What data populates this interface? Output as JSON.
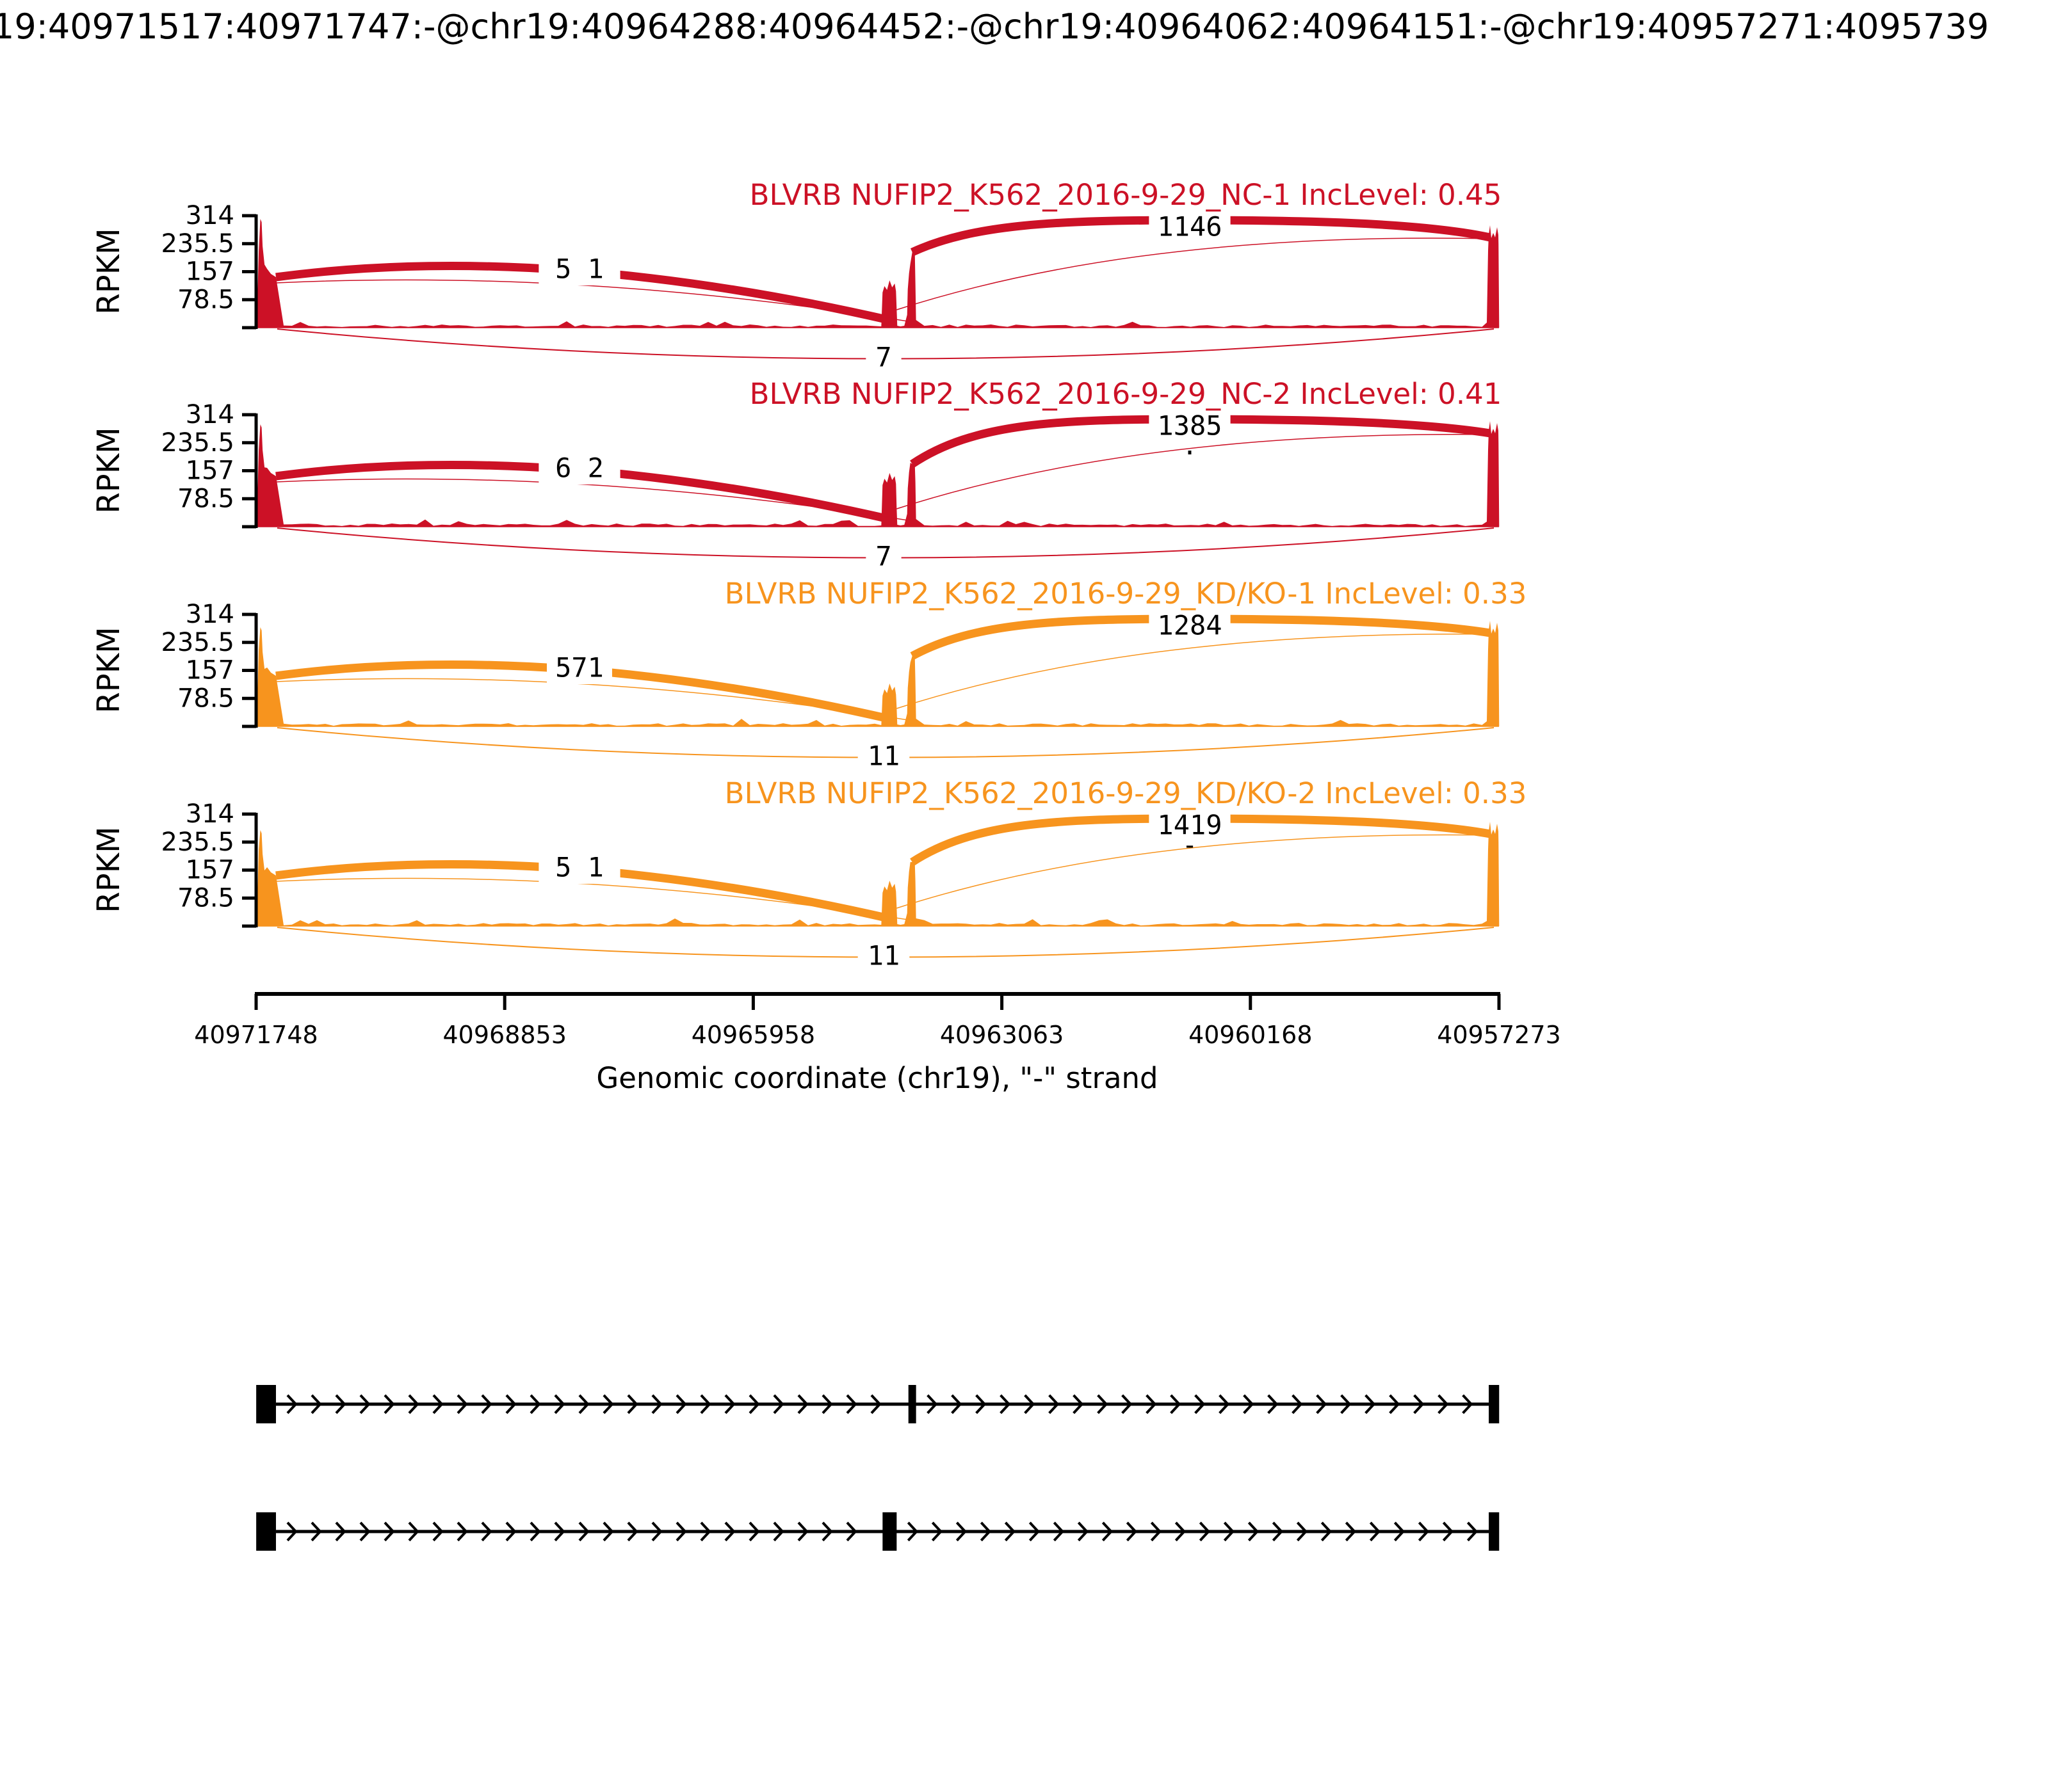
{
  "title": "19:40971517:40971747:-@chr19:40964288:40964452:-@chr19:40964062:40964151:-@chr19:40957271:4095739",
  "chart_data": {
    "type": "area",
    "subtype": "sashimi-plot",
    "gene": "BLVRB",
    "ylabel": "RPKM",
    "ylim": [
      0,
      314
    ],
    "y_ticks": [
      "314",
      "235.5",
      "157",
      "78.5"
    ],
    "x_axis": {
      "label": "Genomic coordinate (chr19), \"-\" strand",
      "ticks": [
        "40971748",
        "40968853",
        "40965958",
        "40963063",
        "40960168",
        "40957273"
      ],
      "range_left_coord": 40971748,
      "range_right_coord": 40957273,
      "strand": "-"
    },
    "exons": {
      "upstream": [
        40971517,
        40971747
      ],
      "mxe_exon_1": [
        40964288,
        40964452
      ],
      "mxe_exon_2": [
        40964062,
        40964151
      ],
      "downstream": [
        40957271,
        40957392
      ]
    },
    "tracks": [
      {
        "title": "BLVRB NUFIP2_K562_2016-9-29_NC-1 IncLevel: 0.45",
        "inc_level": "0.45",
        "color": "#CC1126",
        "inclusion_junction_counts": [
          "5",
          "1"
        ],
        "downstream_junction_count": "1146",
        "skip_junction_count": "7",
        "minor_junction_label": ""
      },
      {
        "title": "BLVRB NUFIP2_K562_2016-9-29_NC-2 IncLevel: 0.41",
        "inc_level": "0.41",
        "color": "#CC1126",
        "inclusion_junction_counts": [
          "6",
          "2"
        ],
        "downstream_junction_count": "1385",
        "skip_junction_count": "7",
        "minor_junction_label": "."
      },
      {
        "title": "BLVRB NUFIP2_K562_2016-9-29_KD/KO-1 IncLevel: 0.33",
        "inc_level": "0.33",
        "color": "#F7941E",
        "inclusion_junction_counts": [
          "571"
        ],
        "downstream_junction_count": "1284",
        "skip_junction_count": "11",
        "minor_junction_label": ""
      },
      {
        "title": "BLVRB NUFIP2_K562_2016-9-29_KD/KO-2 IncLevel: 0.33",
        "inc_level": "0.33",
        "color": "#F7941E",
        "inclusion_junction_counts": [
          "5",
          "1"
        ],
        "downstream_junction_count": "1419",
        "skip_junction_count": "11",
        "minor_junction_label": "-"
      }
    ],
    "gene_model": {
      "strand": "-",
      "isoforms": [
        {
          "exons": [
            [
              40971517,
              40971747
            ],
            [
              40964062,
              40964151
            ],
            [
              40957271,
              40957392
            ]
          ]
        },
        {
          "exons": [
            [
              40971517,
              40971747
            ],
            [
              40964288,
              40964452
            ],
            [
              40957271,
              40957392
            ]
          ]
        }
      ]
    }
  }
}
